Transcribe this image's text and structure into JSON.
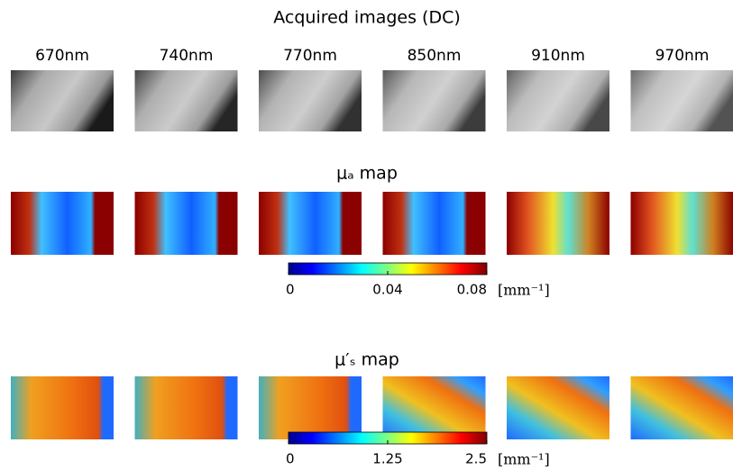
{
  "header": {
    "title": "Acquired images (DC)"
  },
  "wavelengths": [
    "670nm",
    "740nm",
    "770nm",
    "850nm",
    "910nm",
    "970nm"
  ],
  "maps": [
    {
      "title": "μₐ map",
      "colorbar": {
        "lim": [
          0,
          0.08
        ],
        "ticks": [
          0,
          0.04,
          0.08
        ],
        "unit": "[mm⁻¹]"
      }
    },
    {
      "title": "μ′ₛ map",
      "colorbar": {
        "lim": [
          0,
          2.5
        ],
        "ticks": [
          0,
          1.25,
          2.5
        ],
        "unit": "[mm⁻¹]"
      }
    }
  ]
}
